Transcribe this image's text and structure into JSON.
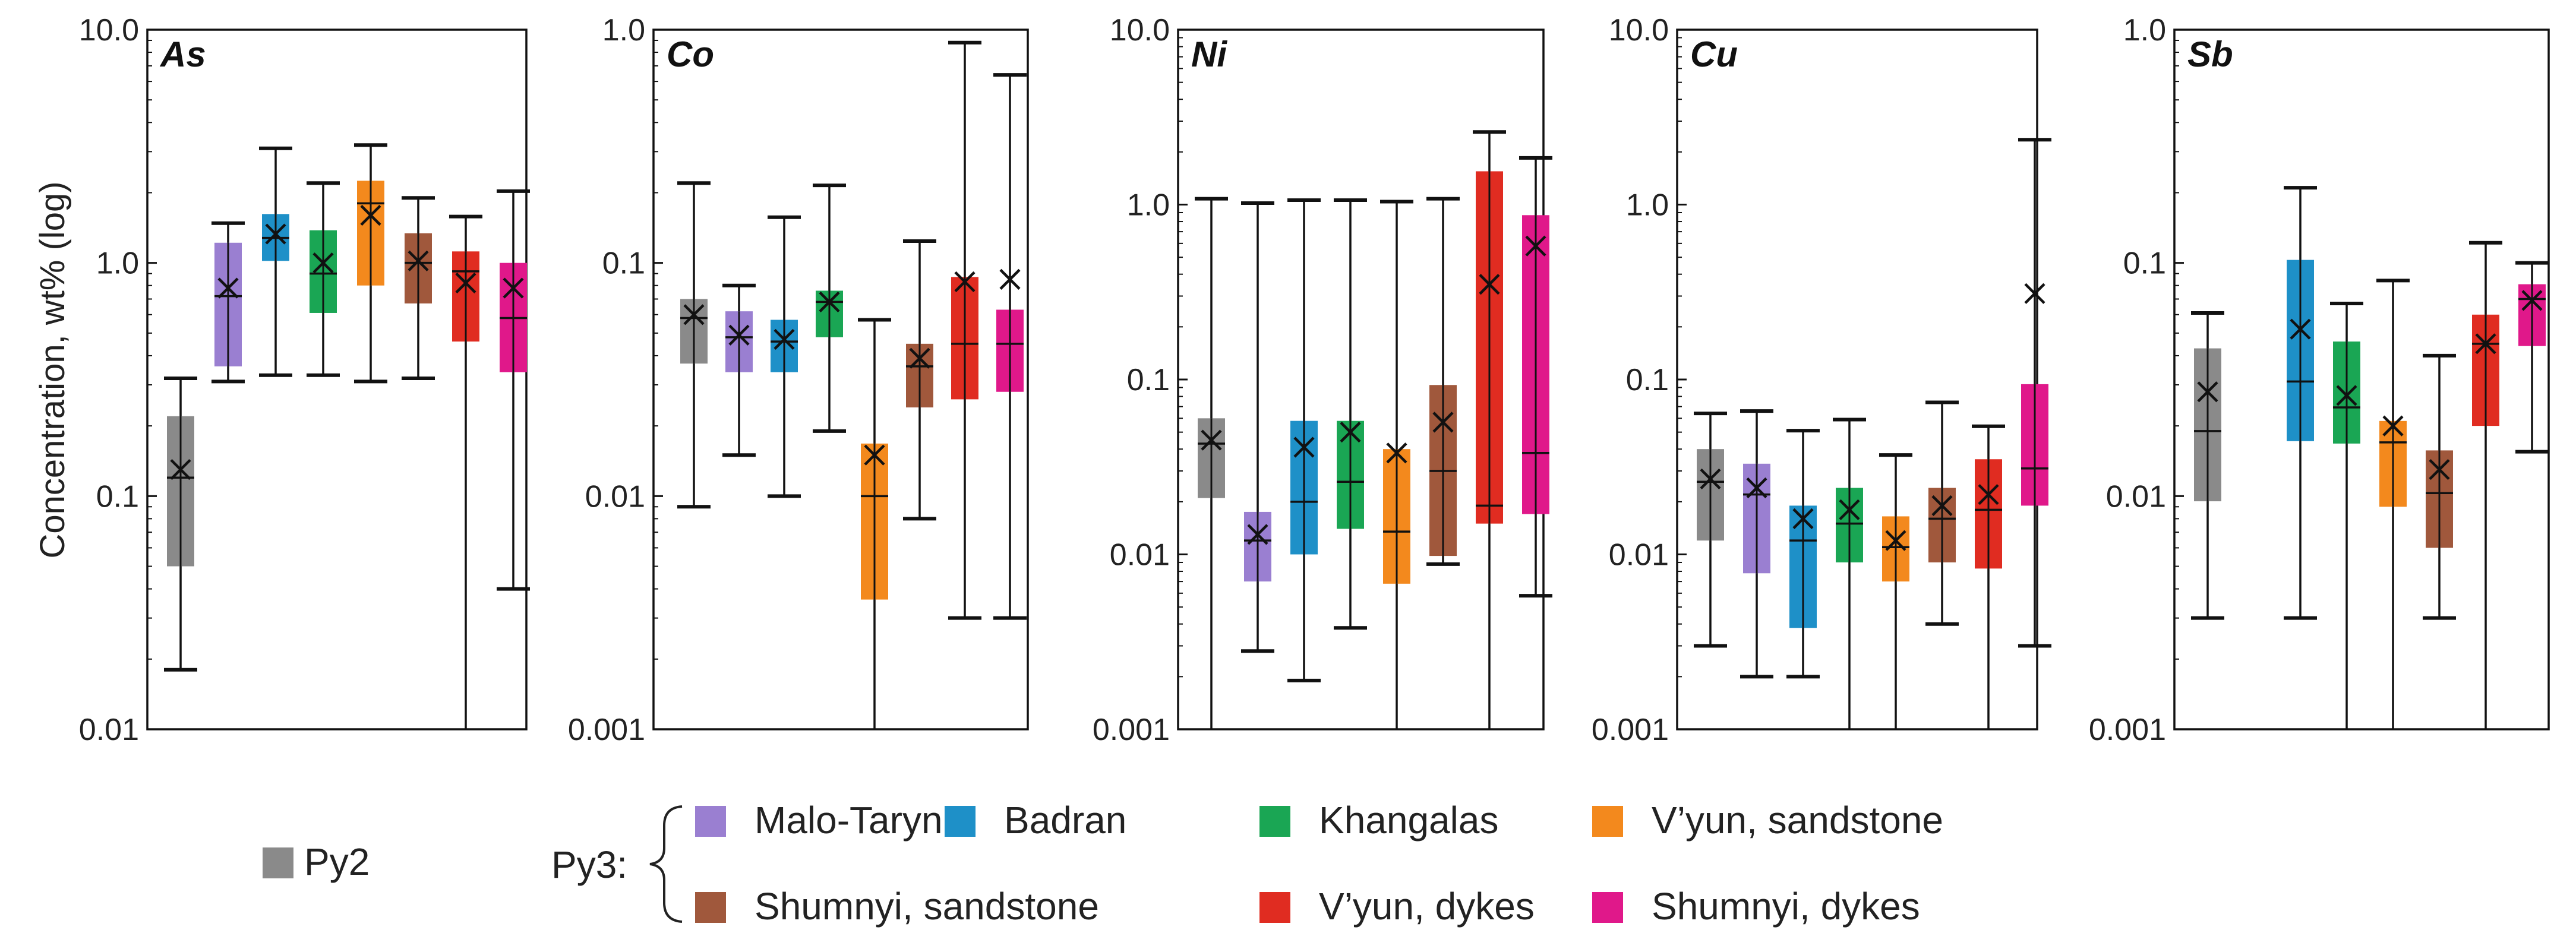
{
  "ylabel": "Concentration, wt% (log)",
  "legend": {
    "py2_label": "Py2",
    "py3_label": "Py3:",
    "py3_items": [
      {
        "label": "Malo-Taryn",
        "color": "#9a7fd1"
      },
      {
        "label": "Badran",
        "color": "#1e90c8"
      },
      {
        "label": "Khangalas",
        "color": "#1aa654"
      },
      {
        "label": "V’yun, sandstone",
        "color": "#f3891d"
      },
      {
        "label": "Shumnyi, sandstone",
        "color": "#a0583c"
      },
      {
        "label": "V’yun, dykes",
        "color": "#e02c21"
      },
      {
        "label": "Shumnyi, dykes",
        "color": "#e0188a"
      }
    ]
  },
  "colors": {
    "Py2": "#8a8a8a",
    "Malo-Taryn": "#9a7fd1",
    "Badran": "#1e90c8",
    "Khangalas": "#1aa654",
    "V’yun, sandstone": "#f3891d",
    "Shumnyi, sandstone": "#a0583c",
    "V’yun, dykes": "#e02c21",
    "Shumnyi, dykes": "#e0188a"
  },
  "chart_data": [
    {
      "type": "boxplot",
      "title": "As",
      "ylabel": "Concentration, wt% (log)",
      "yscale": "log",
      "ylim": [
        0.01,
        10
      ],
      "yticks": [
        "0.01",
        "0.1",
        "1.0",
        "10.0"
      ],
      "series": [
        {
          "name": "Py2",
          "whisker_low": 0.018,
          "q1": 0.05,
          "median": 0.12,
          "q3": 0.22,
          "whisker_high": 0.32,
          "mean": 0.13
        },
        {
          "name": "Malo-Taryn",
          "whisker_low": 0.31,
          "q1": 0.36,
          "median": 0.72,
          "q3": 1.22,
          "whisker_high": 1.48,
          "mean": 0.78
        },
        {
          "name": "Badran",
          "whisker_low": 0.33,
          "q1": 1.02,
          "median": 1.28,
          "q3": 1.62,
          "whisker_high": 3.1,
          "mean": 1.33
        },
        {
          "name": "Khangalas",
          "whisker_low": 0.33,
          "q1": 0.61,
          "median": 0.9,
          "q3": 1.38,
          "whisker_high": 2.2,
          "mean": 1.0
        },
        {
          "name": "V’yun, sandstone",
          "whisker_low": 0.31,
          "q1": 0.8,
          "median": 1.8,
          "q3": 2.25,
          "whisker_high": 3.2,
          "mean": 1.6
        },
        {
          "name": "Shumnyi, sandstone",
          "whisker_low": 0.32,
          "q1": 0.67,
          "median": 1.0,
          "q3": 1.34,
          "whisker_high": 1.9,
          "mean": 1.02
        },
        {
          "name": "V’yun, dykes",
          "whisker_low": 0.01,
          "q1": 0.46,
          "median": 0.92,
          "q3": 1.12,
          "whisker_high": 1.58,
          "mean": 0.82
        },
        {
          "name": "Shumnyi, dykes",
          "whisker_low": 0.04,
          "q1": 0.34,
          "median": 0.58,
          "q3": 1.0,
          "whisker_high": 2.03,
          "mean": 0.78
        }
      ]
    },
    {
      "type": "boxplot",
      "title": "Co",
      "yscale": "log",
      "ylim": [
        0.001,
        1
      ],
      "yticks": [
        "0.001",
        "0.01",
        "0.1",
        "1.0"
      ],
      "series": [
        {
          "name": "Py2",
          "whisker_low": 0.009,
          "q1": 0.037,
          "median": 0.058,
          "q3": 0.07,
          "whisker_high": 0.22,
          "mean": 0.06
        },
        {
          "name": "Malo-Taryn",
          "whisker_low": 0.015,
          "q1": 0.034,
          "median": 0.048,
          "q3": 0.062,
          "whisker_high": 0.08,
          "mean": 0.049
        },
        {
          "name": "Badran",
          "whisker_low": 0.01,
          "q1": 0.034,
          "median": 0.046,
          "q3": 0.057,
          "whisker_high": 0.157,
          "mean": 0.047
        },
        {
          "name": "Khangalas",
          "whisker_low": 0.019,
          "q1": 0.048,
          "median": 0.068,
          "q3": 0.076,
          "whisker_high": 0.215,
          "mean": 0.068
        },
        {
          "name": "V’yun, sandstone",
          "whisker_low": 0.001,
          "q1": 0.0036,
          "median": 0.01,
          "q3": 0.0168,
          "whisker_high": 0.057,
          "mean": 0.015
        },
        {
          "name": "Shumnyi, sandstone",
          "whisker_low": 0.008,
          "q1": 0.024,
          "median": 0.036,
          "q3": 0.045,
          "whisker_high": 0.124,
          "mean": 0.039
        },
        {
          "name": "V’yun, dykes",
          "whisker_low": 0.003,
          "q1": 0.026,
          "median": 0.045,
          "q3": 0.087,
          "whisker_high": 0.88,
          "mean": 0.083
        },
        {
          "name": "Shumnyi, dykes",
          "whisker_low": 0.003,
          "q1": 0.028,
          "median": 0.045,
          "q3": 0.063,
          "whisker_high": 0.64,
          "mean": 0.085
        }
      ]
    },
    {
      "type": "boxplot",
      "title": "Ni",
      "yscale": "log",
      "ylim": [
        0.001,
        10
      ],
      "yticks": [
        "0.001",
        "0.01",
        "0.1",
        "1.0",
        "10.0"
      ],
      "series": [
        {
          "name": "Py2",
          "whisker_low": 0.001,
          "q1": 0.021,
          "median": 0.043,
          "q3": 0.06,
          "whisker_high": 1.08,
          "mean": 0.045
        },
        {
          "name": "Malo-Taryn",
          "whisker_low": 0.0028,
          "q1": 0.007,
          "median": 0.012,
          "q3": 0.0175,
          "whisker_high": 1.02,
          "mean": 0.013
        },
        {
          "name": "Badran",
          "whisker_low": 0.0019,
          "q1": 0.01,
          "median": 0.02,
          "q3": 0.058,
          "whisker_high": 1.06,
          "mean": 0.041
        },
        {
          "name": "Khangalas",
          "whisker_low": 0.0038,
          "q1": 0.014,
          "median": 0.026,
          "q3": 0.058,
          "whisker_high": 1.06,
          "mean": 0.05
        },
        {
          "name": "V’yun, sandstone",
          "whisker_low": 0.001,
          "q1": 0.0068,
          "median": 0.0135,
          "q3": 0.04,
          "whisker_high": 1.04,
          "mean": 0.038
        },
        {
          "name": "Shumnyi, sandstone",
          "whisker_low": 0.0088,
          "q1": 0.0098,
          "median": 0.03,
          "q3": 0.093,
          "whisker_high": 1.08,
          "mean": 0.057
        },
        {
          "name": "V’yun, dykes",
          "whisker_low": 0.001,
          "q1": 0.015,
          "median": 0.019,
          "q3": 1.55,
          "whisker_high": 2.6,
          "mean": 0.35
        },
        {
          "name": "Shumnyi, dykes",
          "whisker_low": 0.0058,
          "q1": 0.017,
          "median": 0.038,
          "q3": 0.87,
          "whisker_high": 1.85,
          "mean": 0.58
        }
      ]
    },
    {
      "type": "boxplot",
      "title": "Cu",
      "yscale": "log",
      "ylim": [
        0.001,
        10
      ],
      "yticks": [
        "0.001",
        "0.01",
        "0.1",
        "1.0",
        "10.0"
      ],
      "series": [
        {
          "name": "Py2",
          "whisker_low": 0.003,
          "q1": 0.012,
          "median": 0.026,
          "q3": 0.04,
          "whisker_high": 0.064,
          "mean": 0.027
        },
        {
          "name": "Malo-Taryn",
          "whisker_low": 0.002,
          "q1": 0.0078,
          "median": 0.022,
          "q3": 0.033,
          "whisker_high": 0.066,
          "mean": 0.024
        },
        {
          "name": "Badran",
          "whisker_low": 0.002,
          "q1": 0.0038,
          "median": 0.012,
          "q3": 0.019,
          "whisker_high": 0.051,
          "mean": 0.016
        },
        {
          "name": "Khangalas",
          "whisker_low": 0.001,
          "q1": 0.009,
          "median": 0.015,
          "q3": 0.024,
          "whisker_high": 0.059,
          "mean": 0.018
        },
        {
          "name": "V’yun, sandstone",
          "whisker_low": 0.001,
          "q1": 0.007,
          "median": 0.011,
          "q3": 0.0165,
          "whisker_high": 0.037,
          "mean": 0.012
        },
        {
          "name": "Shumnyi, sandstone",
          "whisker_low": 0.004,
          "q1": 0.009,
          "median": 0.016,
          "q3": 0.024,
          "whisker_high": 0.074,
          "mean": 0.019
        },
        {
          "name": "V’yun, dykes",
          "whisker_low": 0.001,
          "q1": 0.0083,
          "median": 0.018,
          "q3": 0.035,
          "whisker_high": 0.054,
          "mean": 0.022
        },
        {
          "name": "Shumnyi, dykes",
          "whisker_low": 0.003,
          "q1": 0.019,
          "median": 0.031,
          "q3": 0.094,
          "whisker_high": 2.35,
          "mean": 0.31
        }
      ]
    },
    {
      "type": "boxplot",
      "title": "Sb",
      "yscale": "log",
      "ylim": [
        0.001,
        1
      ],
      "yticks": [
        "0.001",
        "0.01",
        "0.1",
        "1.0"
      ],
      "series": [
        {
          "name": "Py2",
          "whisker_low": 0.003,
          "q1": 0.0095,
          "median": 0.019,
          "q3": 0.043,
          "whisker_high": 0.061,
          "mean": 0.028
        },
        {
          "name": "Malo-Taryn",
          "whisker_low": null,
          "q1": null,
          "median": null,
          "q3": null,
          "whisker_high": null,
          "mean": null
        },
        {
          "name": "Badran",
          "whisker_low": 0.003,
          "q1": 0.0172,
          "median": 0.031,
          "q3": 0.103,
          "whisker_high": 0.21,
          "mean": 0.052
        },
        {
          "name": "Khangalas",
          "whisker_low": 0.001,
          "q1": 0.0168,
          "median": 0.024,
          "q3": 0.046,
          "whisker_high": 0.067,
          "mean": 0.027
        },
        {
          "name": "V’yun, sandstone",
          "whisker_low": 0.001,
          "q1": 0.009,
          "median": 0.017,
          "q3": 0.021,
          "whisker_high": 0.084,
          "mean": 0.02
        },
        {
          "name": "Shumnyi, sandstone",
          "whisker_low": 0.003,
          "q1": 0.006,
          "median": 0.0103,
          "q3": 0.0157,
          "whisker_high": 0.04,
          "mean": 0.013
        },
        {
          "name": "V’yun, dykes",
          "whisker_low": 0.001,
          "q1": 0.02,
          "median": 0.045,
          "q3": 0.06,
          "whisker_high": 0.122,
          "mean": 0.045
        },
        {
          "name": "Shumnyi, dykes",
          "whisker_low": 0.0155,
          "q1": 0.044,
          "median": 0.07,
          "q3": 0.081,
          "whisker_high": 0.1,
          "mean": 0.069
        }
      ]
    }
  ]
}
